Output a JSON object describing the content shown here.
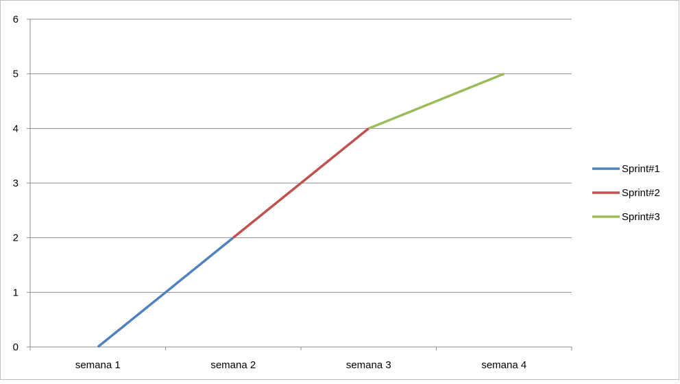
{
  "chart_data": {
    "type": "line",
    "title": "",
    "xlabel": "",
    "ylabel": "",
    "categories": [
      "semana 1",
      "semana 2",
      "semana 3",
      "semana 4"
    ],
    "ylim": [
      0,
      6
    ],
    "yticks": [
      0,
      1,
      2,
      3,
      4,
      5,
      6
    ],
    "grid": true,
    "legend": "right",
    "series": [
      {
        "name": "Sprint#1",
        "color": "#4F81BD",
        "points": [
          [
            0,
            0
          ],
          [
            1,
            2
          ]
        ]
      },
      {
        "name": "Sprint#2",
        "color": "#C0504D",
        "points": [
          [
            1,
            2
          ],
          [
            2,
            4
          ]
        ]
      },
      {
        "name": "Sprint#3",
        "color": "#9BBB59",
        "points": [
          [
            2,
            4
          ],
          [
            3,
            5
          ]
        ]
      }
    ]
  }
}
